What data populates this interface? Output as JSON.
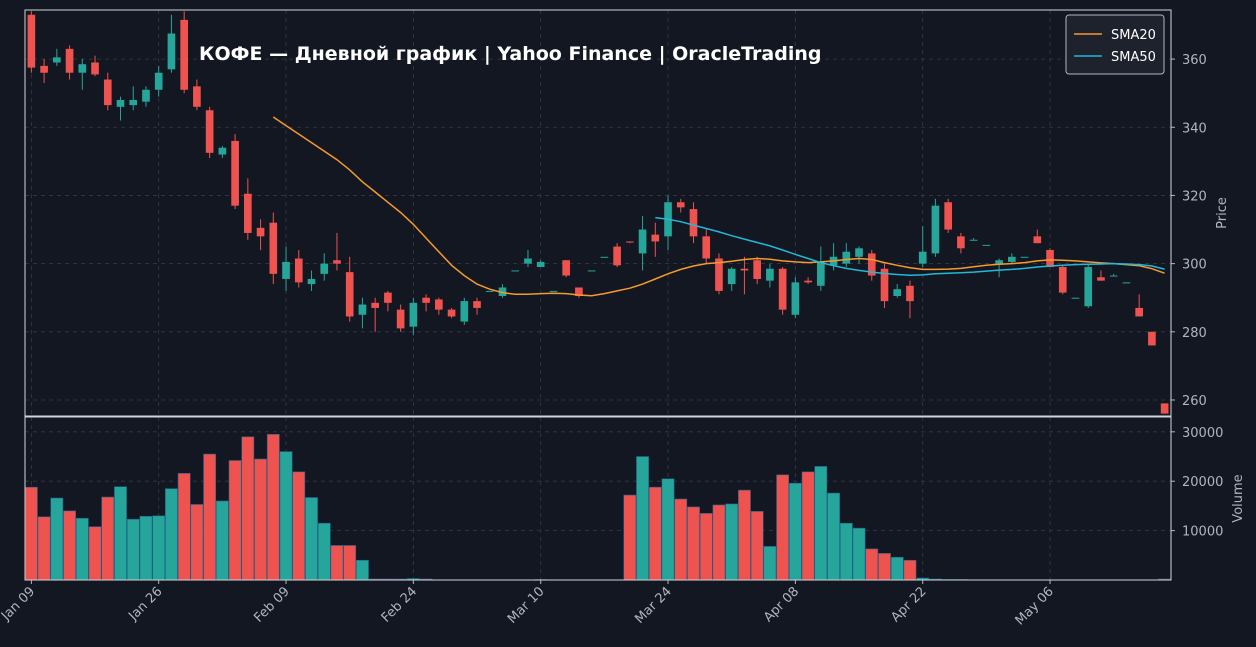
{
  "chart_data": {
    "type": "candlestick",
    "title": "КОФЕ  —  Дневной график  |  Yahoo Finance  |  OracleTrading",
    "ylabel": "Price",
    "volume_ylabel": "Volume",
    "categories": [
      "Jan 09",
      null,
      null,
      null,
      null,
      null,
      null,
      null,
      null,
      null,
      "Jan 26",
      null,
      null,
      null,
      null,
      null,
      null,
      null,
      null,
      null,
      "Feb 09",
      null,
      null,
      null,
      null,
      null,
      null,
      null,
      null,
      null,
      "Feb 24",
      null,
      null,
      null,
      null,
      null,
      null,
      null,
      null,
      null,
      "Mar 10",
      null,
      null,
      null,
      null,
      null,
      null,
      null,
      null,
      null,
      "Mar 24",
      null,
      null,
      null,
      null,
      null,
      null,
      null,
      null,
      null,
      "Apr 08",
      null,
      null,
      null,
      null,
      null,
      null,
      null,
      null,
      null,
      "Apr 22",
      null,
      null,
      null,
      null,
      null,
      null,
      null,
      null,
      null,
      "May 06",
      null,
      null,
      null,
      null,
      null,
      null,
      null,
      null,
      null
    ],
    "open": [
      373,
      358,
      359,
      363,
      356,
      359,
      354,
      346,
      346.5,
      347.5,
      351,
      357,
      371.5,
      352,
      345,
      332,
      336,
      320.5,
      310.5,
      312,
      295.5,
      301.5,
      294,
      297,
      301,
      297.5,
      285,
      288.5,
      291.5,
      286.5,
      281.5,
      290,
      289.5,
      286.5,
      283,
      289,
      292,
      290.5,
      298,
      300,
      299,
      292,
      301,
      293,
      298,
      302,
      305,
      306.5,
      303,
      308.5,
      308,
      318,
      316,
      308,
      301.5,
      294,
      298.5,
      301,
      295,
      298.5,
      285,
      295,
      293.5,
      299.5,
      300,
      302,
      303,
      298.5,
      290.5,
      293.5,
      300,
      303,
      318,
      308,
      307,
      305.5,
      300,
      300.5,
      302,
      308,
      304,
      299,
      290,
      287.5,
      296,
      296.5,
      294.5,
      287,
      280,
      259
    ],
    "high": [
      374,
      360,
      363,
      364,
      360,
      361,
      356,
      349,
      352,
      352,
      358,
      373,
      374,
      354,
      346,
      334.5,
      338,
      325,
      313,
      315,
      305,
      304,
      298,
      303,
      309,
      302,
      290,
      290,
      292,
      288,
      290,
      291,
      290,
      287,
      290,
      290,
      292,
      294,
      298,
      304,
      301,
      292,
      301,
      293,
      298,
      302,
      306,
      306.5,
      314,
      312,
      320,
      319,
      318,
      310,
      303,
      299,
      302,
      302,
      300,
      299,
      296,
      296,
      305,
      306,
      306,
      305,
      304,
      300,
      294,
      295,
      311,
      319,
      319,
      309,
      307.5,
      305.5,
      301.5,
      303,
      302,
      310,
      304.5,
      299.5,
      290,
      300,
      298,
      297,
      294.5,
      291,
      280,
      259
    ],
    "low": [
      356,
      353,
      358,
      354,
      351,
      355,
      345,
      342,
      345,
      346,
      349,
      356,
      350,
      345,
      331,
      331,
      316,
      307,
      304,
      294,
      292,
      293,
      292,
      295,
      298,
      283,
      281,
      280,
      286,
      280,
      279,
      286,
      285,
      284,
      282,
      285,
      292,
      290,
      298,
      299,
      299,
      292,
      296,
      290,
      298,
      302,
      299,
      306,
      298,
      302,
      304,
      315,
      306,
      300,
      291,
      292,
      291,
      294,
      293,
      285,
      284,
      294,
      292,
      298,
      299,
      300,
      295,
      287,
      290,
      284,
      299,
      302,
      309,
      303,
      307,
      305.5,
      296,
      300,
      302,
      306,
      299,
      291,
      290,
      287,
      295,
      296.5,
      294.5,
      284.5,
      276,
      256
    ],
    "close": [
      357.5,
      356,
      360.5,
      356,
      358.5,
      355.5,
      346.5,
      348,
      348,
      351,
      356,
      367.5,
      351,
      346,
      332.5,
      334,
      317,
      309,
      308,
      297,
      300.5,
      294.5,
      295.5,
      300,
      300,
      284.5,
      288,
      287,
      288.5,
      281,
      288.5,
      288.5,
      286.5,
      284.5,
      289,
      287,
      292,
      293,
      298,
      301.5,
      300.5,
      292,
      296.5,
      290.5,
      298,
      302,
      299.5,
      306.2,
      310,
      306.5,
      318,
      316.5,
      308,
      301.5,
      292,
      298.5,
      298,
      295.5,
      298.5,
      286.5,
      294.5,
      294.5,
      300.5,
      302,
      303.5,
      304.5,
      296.5,
      289,
      292.5,
      289,
      303.5,
      317,
      310,
      304.5,
      307,
      305.5,
      301,
      302,
      302,
      306,
      299,
      291.5,
      290,
      299,
      295,
      296.5,
      294.5,
      284.5,
      276,
      256
    ],
    "volume": [
      18800,
      12800,
      16600,
      14000,
      12500,
      10800,
      16800,
      18900,
      12300,
      12900,
      13000,
      18500,
      21600,
      15300,
      25500,
      16000,
      24200,
      29000,
      24500,
      29500,
      26000,
      21900,
      16700,
      11500,
      7000,
      7000,
      4000,
      200,
      200,
      200,
      300,
      200,
      0,
      0,
      0,
      0,
      0,
      0,
      0,
      0,
      100,
      0,
      0,
      0,
      0,
      0,
      0,
      17200,
      25000,
      18800,
      20500,
      16400,
      14800,
      13500,
      15200,
      15400,
      18200,
      13900,
      6800,
      21300,
      19600,
      21900,
      23000,
      17600,
      11500,
      10500,
      6300,
      5400,
      4600,
      4000,
      400,
      200,
      100,
      100,
      0,
      0,
      0,
      0,
      0,
      0,
      0,
      0,
      0,
      0,
      0,
      0,
      0,
      0,
      0,
      200
    ],
    "series": [
      {
        "name": "SMA20",
        "color": "#f59a2d",
        "values": [
          null,
          null,
          null,
          null,
          null,
          null,
          null,
          null,
          null,
          null,
          null,
          null,
          null,
          null,
          null,
          null,
          null,
          null,
          null,
          343,
          340.5,
          338,
          335.5,
          333,
          330.5,
          327.5,
          324,
          321,
          318,
          315,
          311.5,
          307.5,
          303.5,
          299.5,
          296.5,
          294,
          292.5,
          291.5,
          291,
          291,
          291.2,
          291.3,
          291.2,
          290.8,
          290.6,
          291.2,
          292,
          292.8,
          294,
          295.5,
          297,
          298.3,
          299.3,
          300,
          300.3,
          300.7,
          301.2,
          301.5,
          301.3,
          300.8,
          300.5,
          300.3,
          300.5,
          300.8,
          301.2,
          301.5,
          301.2,
          300.3,
          299.5,
          298.8,
          298.3,
          298.3,
          298.4,
          298.6,
          299.1,
          299.5,
          299.8,
          300,
          300.3,
          300.8,
          301.1,
          301,
          300.8,
          300.5,
          300.2,
          300,
          299.7,
          299.4,
          298.5,
          297.2
        ]
      },
      {
        "name": "SMA50",
        "color": "#22b8d8",
        "values": [
          null,
          null,
          null,
          null,
          null,
          null,
          null,
          null,
          null,
          null,
          null,
          null,
          null,
          null,
          null,
          null,
          null,
          null,
          null,
          null,
          null,
          null,
          null,
          null,
          null,
          null,
          null,
          null,
          null,
          null,
          null,
          null,
          null,
          null,
          null,
          null,
          null,
          null,
          null,
          null,
          null,
          null,
          null,
          null,
          null,
          null,
          null,
          null,
          null,
          313.5,
          313,
          312.3,
          311.3,
          310.3,
          309.3,
          308.2,
          307.2,
          306.2,
          305.2,
          304,
          302.7,
          301.5,
          300.3,
          299.4,
          298.6,
          298,
          297.5,
          297.1,
          296.8,
          296.6,
          296.7,
          297,
          297.2,
          297.3,
          297.5,
          297.8,
          298.1,
          298.3,
          298.6,
          299,
          299.3,
          299.5,
          299.7,
          299.8,
          299.9,
          300,
          299.9,
          299.7,
          299.3,
          298.4
        ]
      }
    ],
    "up_color": "#26a69a",
    "down_color": "#ef5350",
    "ylim": [
      255.3,
      374.4
    ],
    "yticks": [
      260,
      280,
      300,
      320,
      340,
      360
    ],
    "volume_ylim": [
      0,
      33000
    ],
    "volume_yticks": [
      10000,
      20000,
      30000
    ],
    "grid": true,
    "legend": "upper right"
  }
}
